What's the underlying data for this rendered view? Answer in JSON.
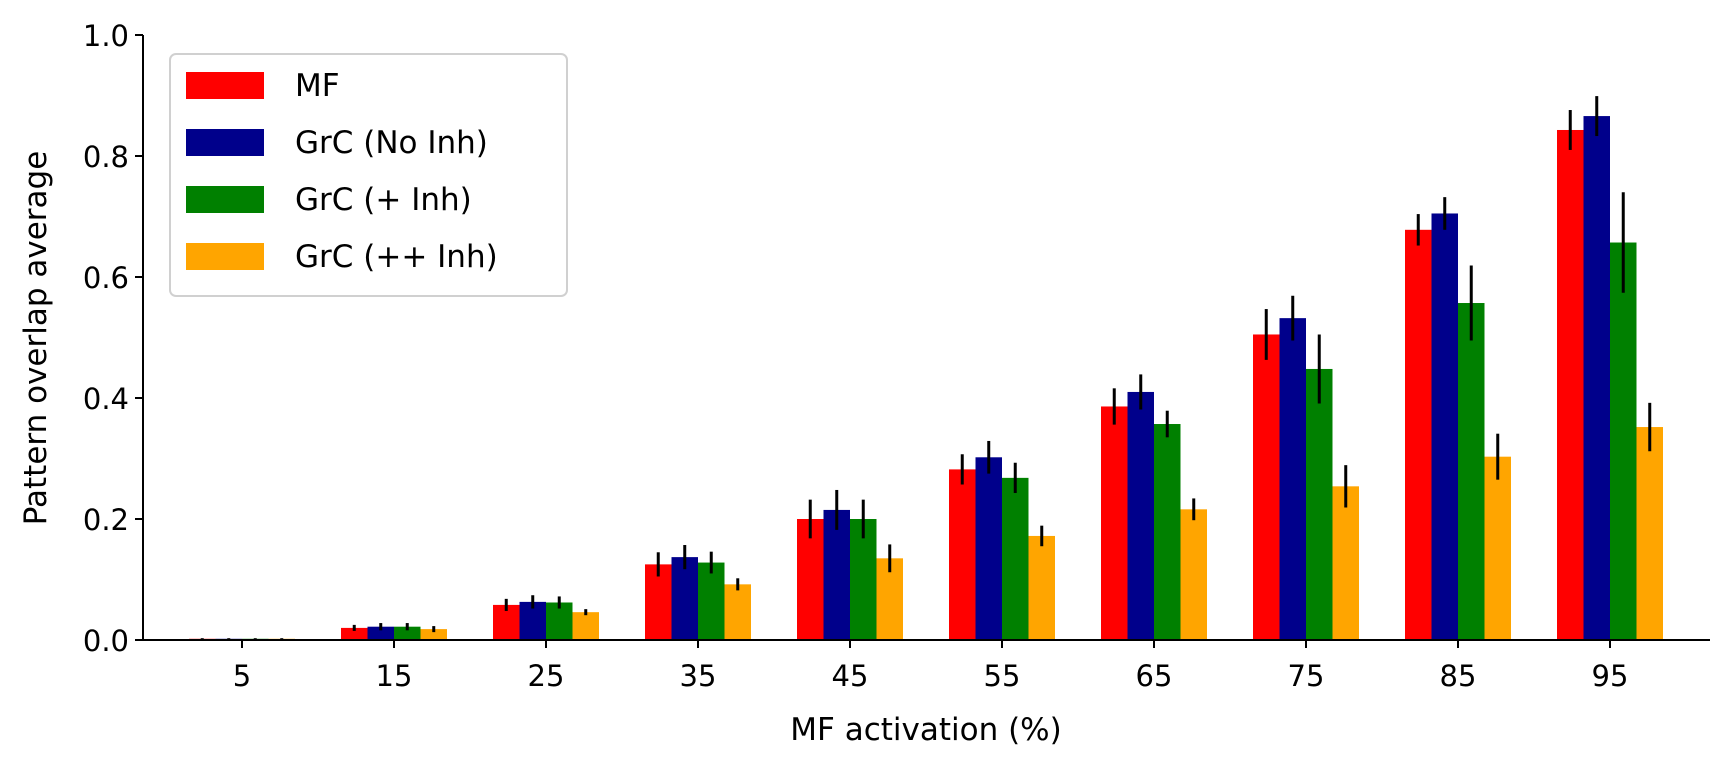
{
  "chart_data": {
    "type": "bar",
    "xlabel": "MF activation (%)",
    "ylabel": "Pattern overlap average",
    "categories": [
      "5",
      "15",
      "25",
      "35",
      "45",
      "55",
      "65",
      "75",
      "85",
      "95"
    ],
    "ylim": [
      0,
      1.0
    ],
    "yticks": [
      "0.0",
      "0.2",
      "0.4",
      "0.6",
      "0.8",
      "1.0"
    ],
    "legend_position": "top-left",
    "grid": false,
    "series": [
      {
        "name": "MF",
        "color": "#ff0000",
        "values": [
          0.002,
          0.02,
          0.058,
          0.125,
          0.2,
          0.282,
          0.386,
          0.505,
          0.678,
          0.843
        ],
        "errors": [
          0.001,
          0.005,
          0.01,
          0.02,
          0.032,
          0.025,
          0.03,
          0.042,
          0.026,
          0.033
        ]
      },
      {
        "name": "GrC (No Inh)",
        "color": "#00008b",
        "values": [
          0.002,
          0.022,
          0.063,
          0.137,
          0.215,
          0.302,
          0.41,
          0.532,
          0.705,
          0.866
        ],
        "errors": [
          0.001,
          0.006,
          0.011,
          0.02,
          0.033,
          0.027,
          0.029,
          0.037,
          0.027,
          0.033
        ]
      },
      {
        "name": "GrC (+ Inh)",
        "color": "#008000",
        "values": [
          0.002,
          0.022,
          0.062,
          0.128,
          0.2,
          0.268,
          0.357,
          0.448,
          0.557,
          0.657
        ],
        "errors": [
          0.001,
          0.006,
          0.01,
          0.018,
          0.032,
          0.025,
          0.022,
          0.057,
          0.062,
          0.083
        ]
      },
      {
        "name": "GrC (++ Inh)",
        "color": "#ffa500",
        "values": [
          0.002,
          0.018,
          0.046,
          0.092,
          0.135,
          0.172,
          0.216,
          0.254,
          0.303,
          0.352
        ],
        "errors": [
          0.001,
          0.005,
          0.005,
          0.01,
          0.023,
          0.017,
          0.018,
          0.035,
          0.038,
          0.04
        ]
      }
    ]
  }
}
